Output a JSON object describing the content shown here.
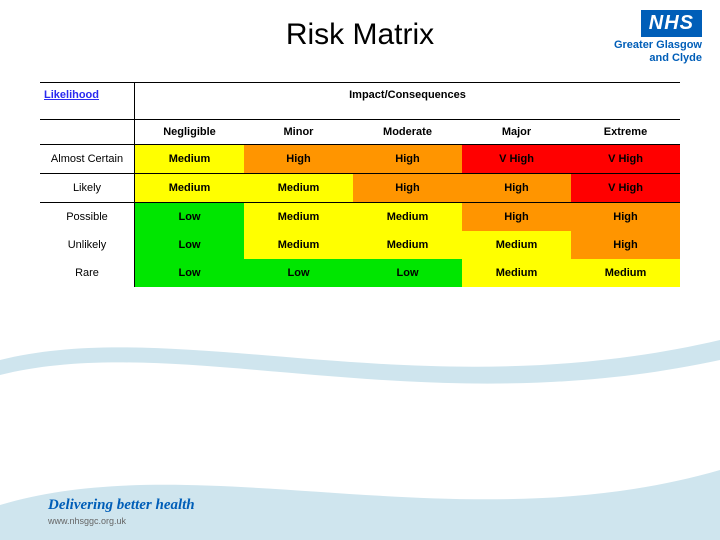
{
  "title": "Risk Matrix",
  "logo": {
    "acronym": "NHS",
    "line1": "Greater Glasgow",
    "line2": "and Clyde"
  },
  "matrix": {
    "likelihood_header": "Likelihood",
    "impact_header": "Impact/Consequences",
    "columns": [
      "Negligible",
      "Minor",
      "Moderate",
      "Major",
      "Extreme"
    ],
    "rows": [
      {
        "label": "Almost Certain",
        "cells": [
          {
            "text": "Medium",
            "bg": "#ffff00"
          },
          {
            "text": "High",
            "bg": "#ff9500"
          },
          {
            "text": "High",
            "bg": "#ff9500"
          },
          {
            "text": "V High",
            "bg": "#ff0000"
          },
          {
            "text": "V High",
            "bg": "#ff0000"
          }
        ],
        "border_after": true
      },
      {
        "label": "Likely",
        "cells": [
          {
            "text": "Medium",
            "bg": "#ffff00"
          },
          {
            "text": "Medium",
            "bg": "#ffff00"
          },
          {
            "text": "High",
            "bg": "#ff9500"
          },
          {
            "text": "High",
            "bg": "#ff9500"
          },
          {
            "text": "V High",
            "bg": "#ff0000"
          }
        ],
        "border_after": true
      },
      {
        "label": "Possible",
        "cells": [
          {
            "text": "Low",
            "bg": "#00e600"
          },
          {
            "text": "Medium",
            "bg": "#ffff00"
          },
          {
            "text": "Medium",
            "bg": "#ffff00"
          },
          {
            "text": "High",
            "bg": "#ff9500"
          },
          {
            "text": "High",
            "bg": "#ff9500"
          }
        ],
        "border_after": false
      },
      {
        "label": "Unlikely",
        "cells": [
          {
            "text": "Low",
            "bg": "#00e600"
          },
          {
            "text": "Medium",
            "bg": "#ffff00"
          },
          {
            "text": "Medium",
            "bg": "#ffff00"
          },
          {
            "text": "Medium",
            "bg": "#ffff00"
          },
          {
            "text": "High",
            "bg": "#ff9500"
          }
        ],
        "border_after": false
      },
      {
        "label": "Rare",
        "cells": [
          {
            "text": "Low",
            "bg": "#00e600"
          },
          {
            "text": "Low",
            "bg": "#00e600"
          },
          {
            "text": "Low",
            "bg": "#00e600"
          },
          {
            "text": "Medium",
            "bg": "#ffff00"
          },
          {
            "text": "Medium",
            "bg": "#ffff00"
          }
        ],
        "border_after": false
      }
    ]
  },
  "swoosh_color": "#cfe5ee",
  "footer": {
    "tagline": "Delivering better health",
    "url": "www.nhsggc.org.uk"
  }
}
